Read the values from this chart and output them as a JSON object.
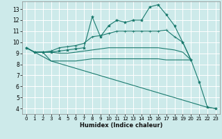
{
  "xlabel": "Humidex (Indice chaleur)",
  "xlim": [
    -0.5,
    23.5
  ],
  "ylim": [
    3.5,
    13.7
  ],
  "yticks": [
    4,
    5,
    6,
    7,
    8,
    9,
    10,
    11,
    12,
    13
  ],
  "xticks": [
    0,
    1,
    2,
    3,
    4,
    5,
    6,
    7,
    8,
    9,
    10,
    11,
    12,
    13,
    14,
    15,
    16,
    17,
    18,
    19,
    20,
    21,
    22,
    23
  ],
  "bg_color": "#cdeaea",
  "grid_color": "#ffffff",
  "line_color": "#1a7a6e",
  "lines": [
    {
      "x": [
        0,
        1,
        2,
        3,
        4,
        5,
        6,
        7,
        8,
        9,
        10,
        11,
        12,
        13,
        14,
        15,
        16,
        17,
        18,
        19,
        20,
        21,
        22,
        23
      ],
      "y": [
        9.5,
        9.1,
        9.1,
        9.1,
        9.2,
        9.3,
        9.4,
        9.5,
        12.3,
        10.5,
        11.5,
        12.0,
        11.8,
        12.0,
        12.0,
        13.2,
        13.4,
        12.5,
        11.5,
        10.0,
        8.4,
        6.4,
        4.1,
        4.0
      ],
      "marker": "*"
    },
    {
      "x": [
        0,
        1,
        2,
        3,
        4,
        5,
        6,
        7,
        8,
        9,
        10,
        11,
        12,
        13,
        14,
        15,
        16,
        17,
        18,
        19,
        20
      ],
      "y": [
        9.5,
        9.1,
        9.1,
        9.2,
        9.5,
        9.6,
        9.7,
        9.9,
        10.5,
        10.6,
        10.8,
        11.0,
        11.0,
        11.0,
        11.0,
        11.0,
        11.0,
        11.1,
        10.5,
        10.0,
        8.4
      ],
      "marker": "+"
    },
    {
      "x": [
        0,
        1,
        2,
        3,
        4,
        5,
        6,
        7,
        8,
        9,
        10,
        11,
        12,
        13,
        14,
        15,
        16,
        17,
        18,
        19,
        20
      ],
      "y": [
        9.5,
        9.1,
        9.1,
        9.1,
        9.0,
        9.0,
        9.1,
        9.2,
        9.3,
        9.4,
        9.5,
        9.5,
        9.5,
        9.5,
        9.5,
        9.5,
        9.5,
        9.4,
        9.3,
        9.1,
        8.4
      ],
      "marker": null
    },
    {
      "x": [
        0,
        1,
        2,
        3,
        4,
        5,
        6,
        7,
        8,
        9,
        10,
        11,
        12,
        13,
        14,
        15,
        16,
        17,
        18,
        20
      ],
      "y": [
        9.5,
        9.1,
        9.1,
        8.3,
        8.3,
        8.3,
        8.3,
        8.4,
        8.5,
        8.5,
        8.5,
        8.5,
        8.5,
        8.5,
        8.5,
        8.5,
        8.5,
        8.4,
        8.4,
        8.4
      ],
      "marker": null
    },
    {
      "x": [
        0,
        3,
        22,
        23
      ],
      "y": [
        9.5,
        8.3,
        4.1,
        4.0
      ],
      "marker": null
    }
  ]
}
